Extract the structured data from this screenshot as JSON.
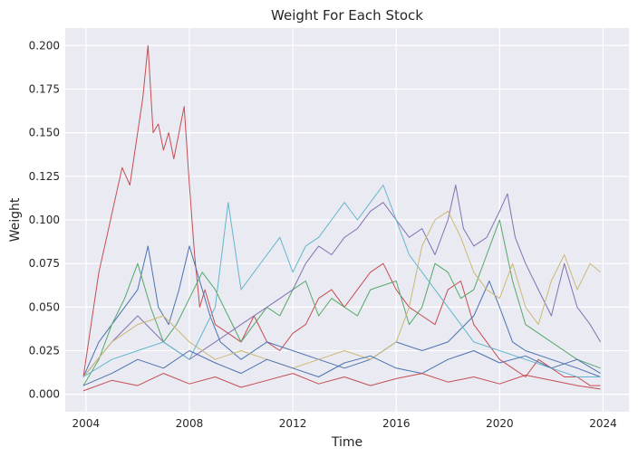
{
  "chart_data": {
    "type": "line",
    "title": "Weight For Each Stock",
    "xlabel": "Time",
    "ylabel": "Weight",
    "xlim": [
      2003.2,
      2025.0
    ],
    "ylim": [
      -0.01,
      0.21
    ],
    "grid": true,
    "legend": "none",
    "x_ticks": [
      2004,
      2008,
      2012,
      2016,
      2020,
      2024
    ],
    "x_tick_labels": [
      "2004",
      "2008",
      "2012",
      "2016",
      "2020",
      "2024"
    ],
    "y_ticks": [
      0.0,
      0.025,
      0.05,
      0.075,
      0.1,
      0.125,
      0.15,
      0.175,
      0.2
    ],
    "y_tick_labels": [
      "0.000",
      "0.025",
      "0.050",
      "0.075",
      "0.100",
      "0.125",
      "0.150",
      "0.175",
      "0.200"
    ],
    "colors": [
      "#4c72b0",
      "#55a868",
      "#c44e52",
      "#8172b2",
      "#ccb974",
      "#64b5cd"
    ],
    "background": "#eaeaf2",
    "series": [
      {
        "color": "#c44e52",
        "x": [
          2003.9,
          2004.2,
          2004.5,
          2004.8,
          2005.1,
          2005.4,
          2005.7,
          2006.0,
          2006.2,
          2006.4,
          2006.6,
          2006.8,
          2007.0,
          2007.2,
          2007.4,
          2007.6,
          2007.8,
          2008.0,
          2008.2,
          2008.4,
          2008.6,
          2008.8,
          2009.0,
          2009.5,
          2010.0,
          2010.5,
          2011.0,
          2011.5,
          2012.0,
          2012.5,
          2013.0,
          2013.5,
          2014.0,
          2014.5,
          2015.0,
          2015.5,
          2016.0,
          2016.5,
          2017.0,
          2017.5,
          2018.0,
          2018.5,
          2019.0,
          2019.5,
          2020.0,
          2020.5,
          2021.0,
          2021.5,
          2022.0,
          2022.5,
          2023.0,
          2023.5,
          2023.9
        ],
        "y": [
          0.01,
          0.04,
          0.07,
          0.09,
          0.11,
          0.13,
          0.12,
          0.15,
          0.17,
          0.2,
          0.15,
          0.155,
          0.14,
          0.15,
          0.135,
          0.15,
          0.165,
          0.12,
          0.08,
          0.05,
          0.06,
          0.05,
          0.04,
          0.035,
          0.03,
          0.045,
          0.03,
          0.025,
          0.035,
          0.04,
          0.055,
          0.06,
          0.05,
          0.06,
          0.07,
          0.075,
          0.06,
          0.05,
          0.045,
          0.04,
          0.06,
          0.065,
          0.04,
          0.03,
          0.02,
          0.015,
          0.01,
          0.02,
          0.015,
          0.01,
          0.01,
          0.005,
          0.005
        ]
      },
      {
        "color": "#4c72b0",
        "x": [
          2003.9,
          2004.5,
          2005.0,
          2005.5,
          2006.0,
          2006.4,
          2006.8,
          2007.2,
          2007.6,
          2008.0,
          2008.4,
          2008.8,
          2009.2,
          2010.0,
          2011.0,
          2012.0,
          2013.0,
          2014.0,
          2015.0,
          2016.0,
          2017.0,
          2018.0,
          2019.0,
          2019.6,
          2020.0,
          2020.5,
          2021.0,
          2022.0,
          2023.0,
          2023.9
        ],
        "y": [
          0.01,
          0.03,
          0.04,
          0.05,
          0.06,
          0.085,
          0.05,
          0.04,
          0.06,
          0.085,
          0.065,
          0.045,
          0.03,
          0.02,
          0.03,
          0.025,
          0.02,
          0.015,
          0.02,
          0.03,
          0.025,
          0.03,
          0.045,
          0.065,
          0.05,
          0.03,
          0.025,
          0.02,
          0.015,
          0.01
        ]
      },
      {
        "color": "#55a868",
        "x": [
          2003.9,
          2004.5,
          2005.0,
          2005.5,
          2006.0,
          2006.5,
          2007.0,
          2007.5,
          2008.0,
          2008.5,
          2009.0,
          2010.0,
          2010.5,
          2011.0,
          2011.5,
          2012.0,
          2012.5,
          2013.0,
          2013.5,
          2014.0,
          2014.5,
          2015.0,
          2016.0,
          2016.5,
          2017.0,
          2017.5,
          2018.0,
          2018.5,
          2019.0,
          2019.5,
          2020.0,
          2020.5,
          2021.0,
          2022.0,
          2023.0,
          2023.9
        ],
        "y": [
          0.005,
          0.02,
          0.04,
          0.055,
          0.075,
          0.05,
          0.03,
          0.04,
          0.055,
          0.07,
          0.06,
          0.03,
          0.04,
          0.05,
          0.045,
          0.06,
          0.065,
          0.045,
          0.055,
          0.05,
          0.045,
          0.06,
          0.065,
          0.04,
          0.05,
          0.075,
          0.07,
          0.055,
          0.06,
          0.08,
          0.1,
          0.065,
          0.04,
          0.03,
          0.02,
          0.015
        ]
      },
      {
        "color": "#8172b2",
        "x": [
          2003.9,
          2005.0,
          2006.0,
          2007.0,
          2008.0,
          2009.0,
          2010.0,
          2011.0,
          2012.0,
          2012.5,
          2013.0,
          2013.5,
          2014.0,
          2014.5,
          2015.0,
          2015.5,
          2016.0,
          2016.5,
          2017.0,
          2017.5,
          2018.0,
          2018.3,
          2018.6,
          2019.0,
          2019.5,
          2020.0,
          2020.3,
          2020.6,
          2021.0,
          2021.5,
          2022.0,
          2022.5,
          2023.0,
          2023.5,
          2023.9
        ],
        "y": [
          0.01,
          0.03,
          0.045,
          0.03,
          0.02,
          0.03,
          0.04,
          0.05,
          0.06,
          0.075,
          0.085,
          0.08,
          0.09,
          0.095,
          0.105,
          0.11,
          0.1,
          0.09,
          0.095,
          0.08,
          0.1,
          0.12,
          0.095,
          0.085,
          0.09,
          0.105,
          0.115,
          0.09,
          0.075,
          0.06,
          0.045,
          0.075,
          0.05,
          0.04,
          0.03
        ]
      },
      {
        "color": "#ccb974",
        "x": [
          2003.9,
          2005.0,
          2006.0,
          2007.0,
          2008.0,
          2009.0,
          2010.0,
          2011.0,
          2012.0,
          2013.0,
          2014.0,
          2015.0,
          2016.0,
          2016.5,
          2017.0,
          2017.5,
          2018.0,
          2018.5,
          2019.0,
          2019.5,
          2020.0,
          2020.5,
          2021.0,
          2021.5,
          2022.0,
          2022.5,
          2023.0,
          2023.5,
          2023.9
        ],
        "y": [
          0.01,
          0.03,
          0.04,
          0.045,
          0.03,
          0.02,
          0.025,
          0.02,
          0.015,
          0.02,
          0.025,
          0.02,
          0.03,
          0.05,
          0.085,
          0.1,
          0.105,
          0.09,
          0.07,
          0.06,
          0.055,
          0.075,
          0.05,
          0.04,
          0.065,
          0.08,
          0.06,
          0.075,
          0.07
        ]
      },
      {
        "color": "#64b5cd",
        "x": [
          2003.9,
          2005.0,
          2006.0,
          2007.0,
          2008.0,
          2009.0,
          2009.5,
          2010.0,
          2011.0,
          2011.5,
          2012.0,
          2012.5,
          2013.0,
          2013.5,
          2014.0,
          2014.5,
          2015.0,
          2015.5,
          2016.0,
          2016.5,
          2017.0,
          2017.5,
          2018.0,
          2019.0,
          2020.0,
          2021.0,
          2022.0,
          2023.0,
          2023.9
        ],
        "y": [
          0.01,
          0.02,
          0.025,
          0.03,
          0.02,
          0.05,
          0.11,
          0.06,
          0.08,
          0.09,
          0.07,
          0.085,
          0.09,
          0.1,
          0.11,
          0.1,
          0.11,
          0.12,
          0.1,
          0.08,
          0.07,
          0.06,
          0.05,
          0.03,
          0.025,
          0.02,
          0.015,
          0.01,
          0.01
        ]
      },
      {
        "color": "#4c72b0",
        "x": [
          2003.9,
          2005.0,
          2006.0,
          2007.0,
          2008.0,
          2009.0,
          2010.0,
          2011.0,
          2012.0,
          2013.0,
          2014.0,
          2015.0,
          2016.0,
          2017.0,
          2018.0,
          2019.0,
          2020.0,
          2021.0,
          2022.0,
          2023.0,
          2023.9
        ],
        "y": [
          0.005,
          0.012,
          0.02,
          0.015,
          0.025,
          0.018,
          0.012,
          0.02,
          0.015,
          0.01,
          0.018,
          0.022,
          0.015,
          0.012,
          0.02,
          0.025,
          0.018,
          0.022,
          0.015,
          0.02,
          0.012
        ]
      },
      {
        "color": "#c44e52",
        "x": [
          2003.9,
          2005.0,
          2006.0,
          2007.0,
          2008.0,
          2009.0,
          2010.0,
          2011.0,
          2012.0,
          2013.0,
          2014.0,
          2015.0,
          2016.0,
          2017.0,
          2018.0,
          2019.0,
          2020.0,
          2021.0,
          2022.0,
          2023.0,
          2023.9
        ],
        "y": [
          0.002,
          0.008,
          0.005,
          0.012,
          0.006,
          0.01,
          0.004,
          0.008,
          0.012,
          0.006,
          0.01,
          0.005,
          0.009,
          0.012,
          0.007,
          0.01,
          0.006,
          0.011,
          0.008,
          0.005,
          0.003
        ]
      }
    ]
  }
}
